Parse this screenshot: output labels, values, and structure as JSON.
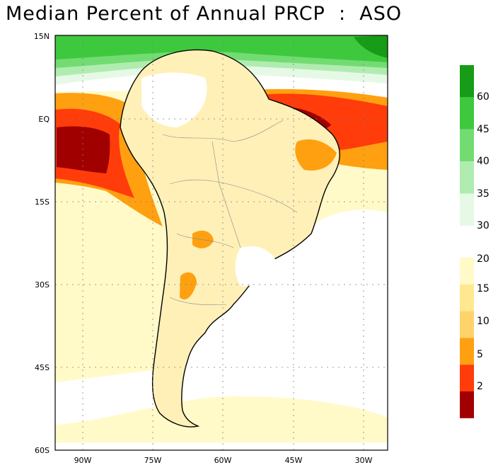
{
  "map": {
    "title": "Median Percent of Annual PRCP  :  ASO",
    "lat_ticks": [
      "15N",
      "EQ",
      "15S",
      "30S",
      "45S",
      "60S"
    ],
    "lon_ticks": [
      "90W",
      "75W",
      "60W",
      "45W",
      "30W"
    ],
    "colorbar": {
      "labels": [
        "60",
        "45",
        "40",
        "35",
        "30",
        "20",
        "15",
        "10",
        "5",
        "2"
      ],
      "colors_top": [
        "#169c16",
        "#3ec83e",
        "#72dc72",
        "#b0ecb0",
        "#e6f9e6"
      ],
      "colors_bottom": [
        "#fffac8",
        "#ffe890",
        "#ffd36c",
        "#ffa010",
        "#ff3c0a",
        "#a00000"
      ]
    }
  }
}
